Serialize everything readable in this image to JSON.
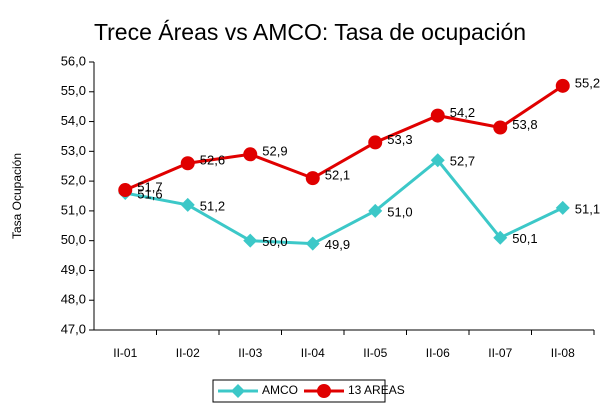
{
  "chart_data": {
    "type": "line",
    "title": "Trece Áreas vs AMCO: Tasa de ocupación",
    "y_label": "Tasa Ocupación",
    "categories": [
      "II-01",
      "II-02",
      "II-03",
      "II-04",
      "II-05",
      "II-06",
      "II-07",
      "II-08"
    ],
    "series": [
      {
        "name": "AMCO",
        "color": "#3cc8c8",
        "marker": "diamond",
        "values": [
          51.6,
          51.2,
          50.0,
          49.9,
          51.0,
          52.7,
          50.1,
          51.1
        ],
        "value_labels": [
          "51,6",
          "51,2",
          "50,0",
          "49,9",
          "51,0",
          "52,7",
          "50,1",
          "51,1"
        ]
      },
      {
        "name": "13 AREAS",
        "color": "#e00000",
        "marker": "circle",
        "values": [
          51.7,
          52.6,
          52.9,
          52.1,
          53.3,
          54.2,
          53.8,
          55.2
        ],
        "value_labels": [
          "51,7",
          "52,6",
          "52,9",
          "52,1",
          "53,3",
          "54,2",
          "53,8",
          "55,2"
        ]
      }
    ],
    "ylim": [
      47,
      56
    ],
    "yticks": [
      {
        "value": 47,
        "label": "47,0"
      },
      {
        "value": 48,
        "label": "48,0"
      },
      {
        "value": 49,
        "label": "49,0"
      },
      {
        "value": 50,
        "label": "50,0"
      },
      {
        "value": 51,
        "label": "51,0"
      },
      {
        "value": 52,
        "label": "52,0"
      },
      {
        "value": 53,
        "label": "53,0"
      },
      {
        "value": 54,
        "label": "54,0"
      },
      {
        "value": 55,
        "label": "55,0"
      },
      {
        "value": 56,
        "label": "56,0"
      }
    ],
    "grid": false,
    "legend": "bottom"
  }
}
